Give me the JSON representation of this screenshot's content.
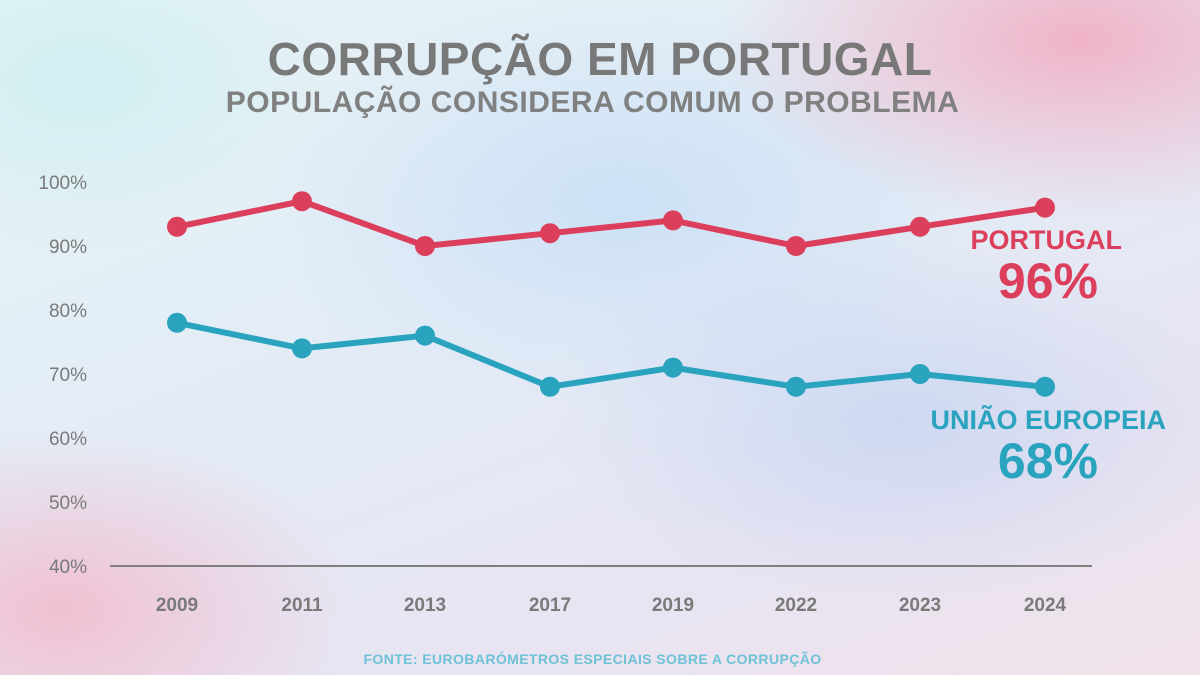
{
  "header": {
    "title": "CORRUPÇÃO EM PORTUGAL",
    "subtitle": "POPULAÇÃO CONSIDERA COMUM O PROBLEMA"
  },
  "footer": {
    "source": "FONTE: EUROBARÓMETROS ESPECIAIS SOBRE A CORRUPÇÃO"
  },
  "colors": {
    "portugal": "#dc3f5c",
    "eu": "#2aa3bf",
    "axis": "#7f7f7f",
    "tick_text": "#7a7a7a"
  },
  "chart_data": {
    "type": "line",
    "title": "CORRUPÇÃO EM PORTUGAL",
    "subtitle": "POPULAÇÃO CONSIDERA COMUM O PROBLEMA",
    "categories": [
      "2009",
      "2011",
      "2013",
      "2017",
      "2019",
      "2022",
      "2023",
      "2024"
    ],
    "ylim": [
      40,
      100
    ],
    "yticks": [
      "100%",
      "90%",
      "80%",
      "70%",
      "60%",
      "50%",
      "40%"
    ],
    "ytick_values": [
      100,
      90,
      80,
      70,
      60,
      50,
      40
    ],
    "grid": false,
    "series": [
      {
        "name": "PORTUGAL",
        "label_value": "96%",
        "color": "#dc3f5c",
        "values": [
          93,
          97,
          90,
          92,
          94,
          90,
          93,
          96
        ]
      },
      {
        "name": "UNIÃO EUROPEIA",
        "label_value": "68%",
        "color": "#2aa3bf",
        "values": [
          78,
          74,
          76,
          68,
          71,
          68,
          70,
          68
        ]
      }
    ]
  }
}
